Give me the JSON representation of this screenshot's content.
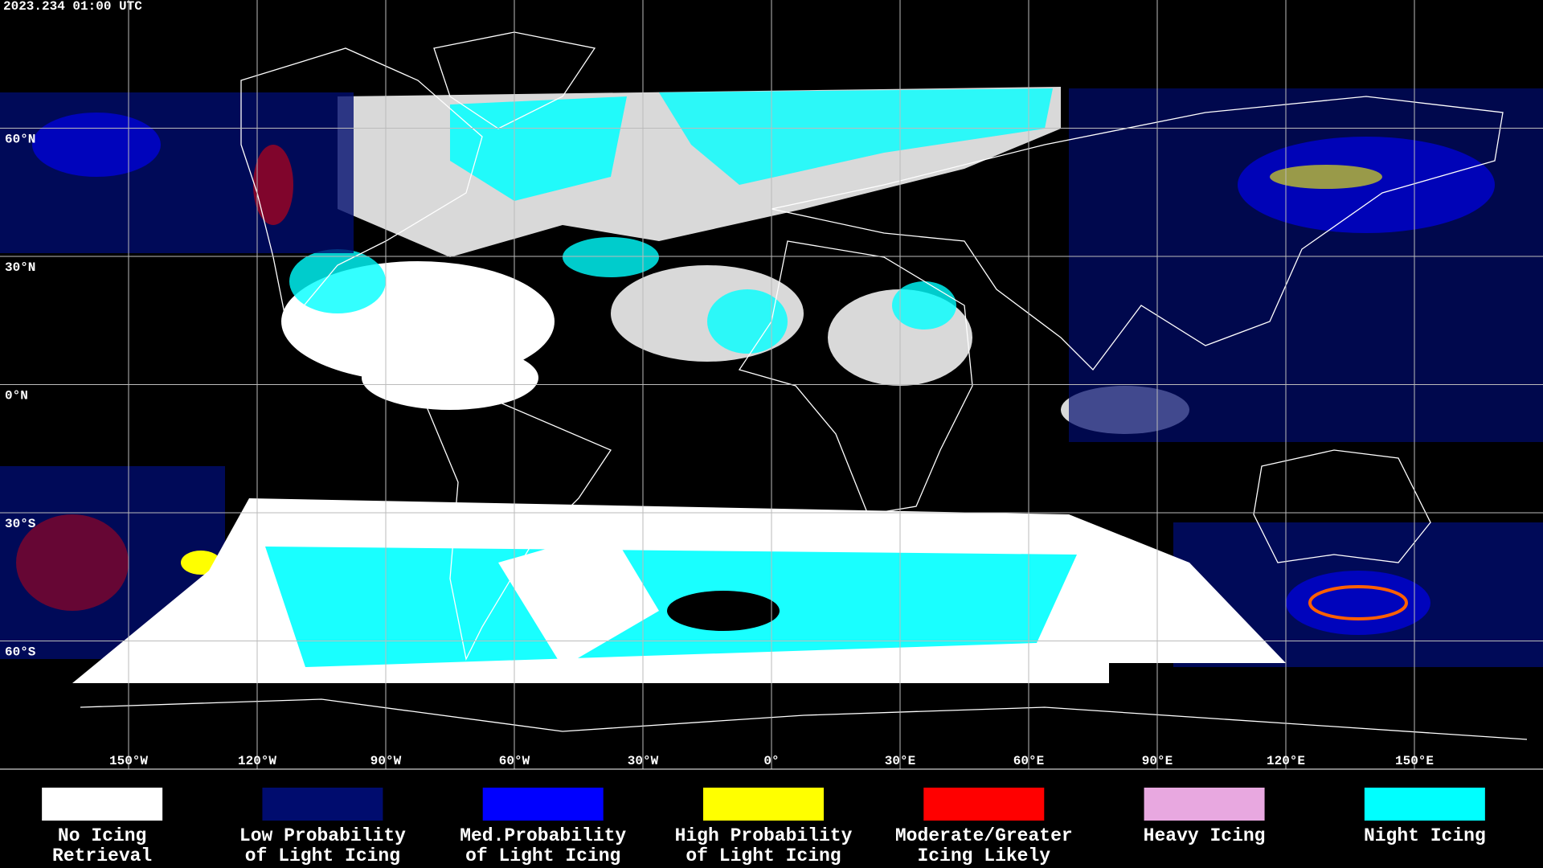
{
  "timestamp": "2023.234 01:00 UTC",
  "latitudes": [
    {
      "value": 60,
      "label": "60°N"
    },
    {
      "value": 30,
      "label": "30°N"
    },
    {
      "value": 0,
      "label": "0°N"
    },
    {
      "value": -30,
      "label": "30°S"
    },
    {
      "value": -60,
      "label": "60°S"
    }
  ],
  "longitudes": [
    {
      "value": -150,
      "label": "150°W"
    },
    {
      "value": -120,
      "label": "120°W"
    },
    {
      "value": -90,
      "label": "90°W"
    },
    {
      "value": -60,
      "label": "60°W"
    },
    {
      "value": -30,
      "label": "30°W"
    },
    {
      "value": 0,
      "label": "0°"
    },
    {
      "value": 30,
      "label": "30°E"
    },
    {
      "value": 60,
      "label": "60°E"
    },
    {
      "value": 90,
      "label": "90°E"
    },
    {
      "value": 120,
      "label": "120°E"
    },
    {
      "value": 150,
      "label": "150°E"
    }
  ],
  "legend": [
    {
      "lines": [
        "No Icing",
        "Retrieval"
      ],
      "color": "#ffffff"
    },
    {
      "lines": [
        "Low Probability",
        "of Light Icing"
      ],
      "color": "#000c6e"
    },
    {
      "lines": [
        "Med.Probability",
        "of Light Icing"
      ],
      "color": "#0000ff"
    },
    {
      "lines": [
        "High Probability",
        "of Light Icing"
      ],
      "color": "#ffff00"
    },
    {
      "lines": [
        "Moderate/Greater",
        "Icing Likely"
      ],
      "color": "#ff0000"
    },
    {
      "lines": [
        "Heavy Icing"
      ],
      "color": "#e8a8e0"
    },
    {
      "lines": [
        "Night Icing"
      ],
      "color": "#00ffff"
    }
  ]
}
